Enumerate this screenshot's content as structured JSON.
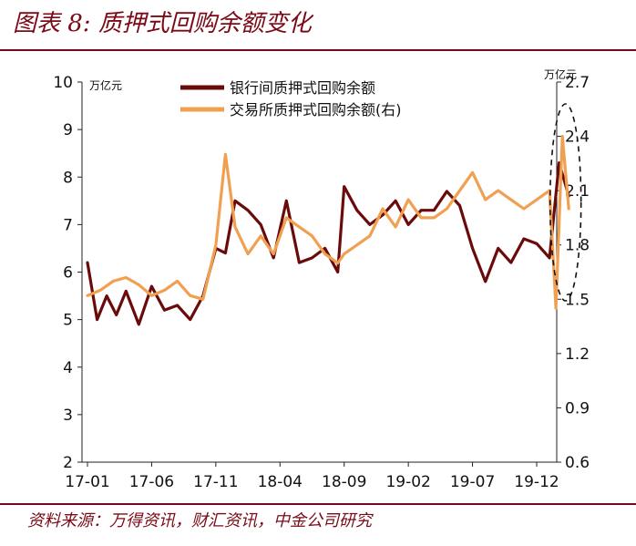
{
  "title": "图表 8: 质押式回购余额变化",
  "source": "资料来源：万得资讯，财汇资讯，中金公司研究",
  "chart_data": {
    "type": "line",
    "x_tick_labels": [
      "17-01",
      "17-06",
      "17-11",
      "18-04",
      "18-09",
      "19-02",
      "19-07",
      "19-12"
    ],
    "left_unit": "万亿元",
    "right_unit": "万亿元",
    "ylim_left": [
      2,
      10
    ],
    "ylim_right": [
      0.6,
      2.7
    ],
    "yticks_left": [
      "2",
      "3",
      "4",
      "5",
      "6",
      "7",
      "8",
      "9",
      "10"
    ],
    "yticks_right": [
      "0.6",
      "0.9",
      "1.2",
      "1.5",
      "1.8",
      "2.1",
      "2.4",
      "2.7"
    ],
    "grid": false,
    "legend_position": "top-center",
    "annotation": "dashed ellipse highlighting the latest period",
    "series": [
      {
        "name": "银行间质押式回购余额",
        "axis": "left",
        "color": "#6b0a0a",
        "x_tick_index": [
          0,
          0.15,
          0.3,
          0.45,
          0.6,
          0.8,
          1,
          1.2,
          1.4,
          1.6,
          1.8,
          2,
          2.15,
          2.3,
          2.5,
          2.7,
          2.9,
          3.1,
          3.3,
          3.5,
          3.7,
          3.9,
          4,
          4.2,
          4.4,
          4.6,
          4.8,
          5,
          5.2,
          5.4,
          5.6,
          5.8,
          6,
          6.2,
          6.4,
          6.6,
          6.8,
          7,
          7.2,
          7.35,
          7.5
        ],
        "values": [
          6.2,
          5.0,
          5.5,
          5.1,
          5.6,
          4.9,
          5.7,
          5.2,
          5.3,
          5.0,
          5.5,
          6.5,
          6.4,
          7.5,
          7.3,
          7.0,
          6.3,
          7.5,
          6.2,
          6.3,
          6.5,
          6.0,
          7.8,
          7.3,
          7.0,
          7.2,
          7.5,
          7.0,
          7.3,
          7.3,
          7.7,
          7.4,
          6.5,
          5.8,
          6.5,
          6.2,
          6.7,
          6.6,
          6.3,
          8.3,
          7.6
        ]
      },
      {
        "name": "交易所质押式回购余额(右)",
        "axis": "right",
        "color": "#f0a050",
        "x_tick_index": [
          0,
          0.2,
          0.4,
          0.6,
          0.8,
          1,
          1.2,
          1.4,
          1.6,
          1.8,
          2,
          2.15,
          2.3,
          2.5,
          2.7,
          2.9,
          3.1,
          3.3,
          3.5,
          3.7,
          3.9,
          4,
          4.2,
          4.4,
          4.6,
          4.8,
          5,
          5.2,
          5.4,
          5.6,
          5.8,
          6,
          6.2,
          6.4,
          6.6,
          6.8,
          7,
          7.2,
          7.3,
          7.4,
          7.5
        ],
        "values": [
          1.52,
          1.55,
          1.6,
          1.62,
          1.58,
          1.52,
          1.55,
          1.6,
          1.52,
          1.5,
          1.8,
          2.3,
          1.9,
          1.75,
          1.85,
          1.75,
          1.95,
          1.9,
          1.85,
          1.75,
          1.7,
          1.75,
          1.8,
          1.85,
          2.0,
          1.9,
          2.05,
          1.95,
          1.95,
          2.0,
          2.1,
          2.2,
          2.05,
          2.1,
          2.05,
          2.0,
          2.05,
          2.1,
          1.45,
          2.4,
          2.0
        ]
      }
    ]
  }
}
